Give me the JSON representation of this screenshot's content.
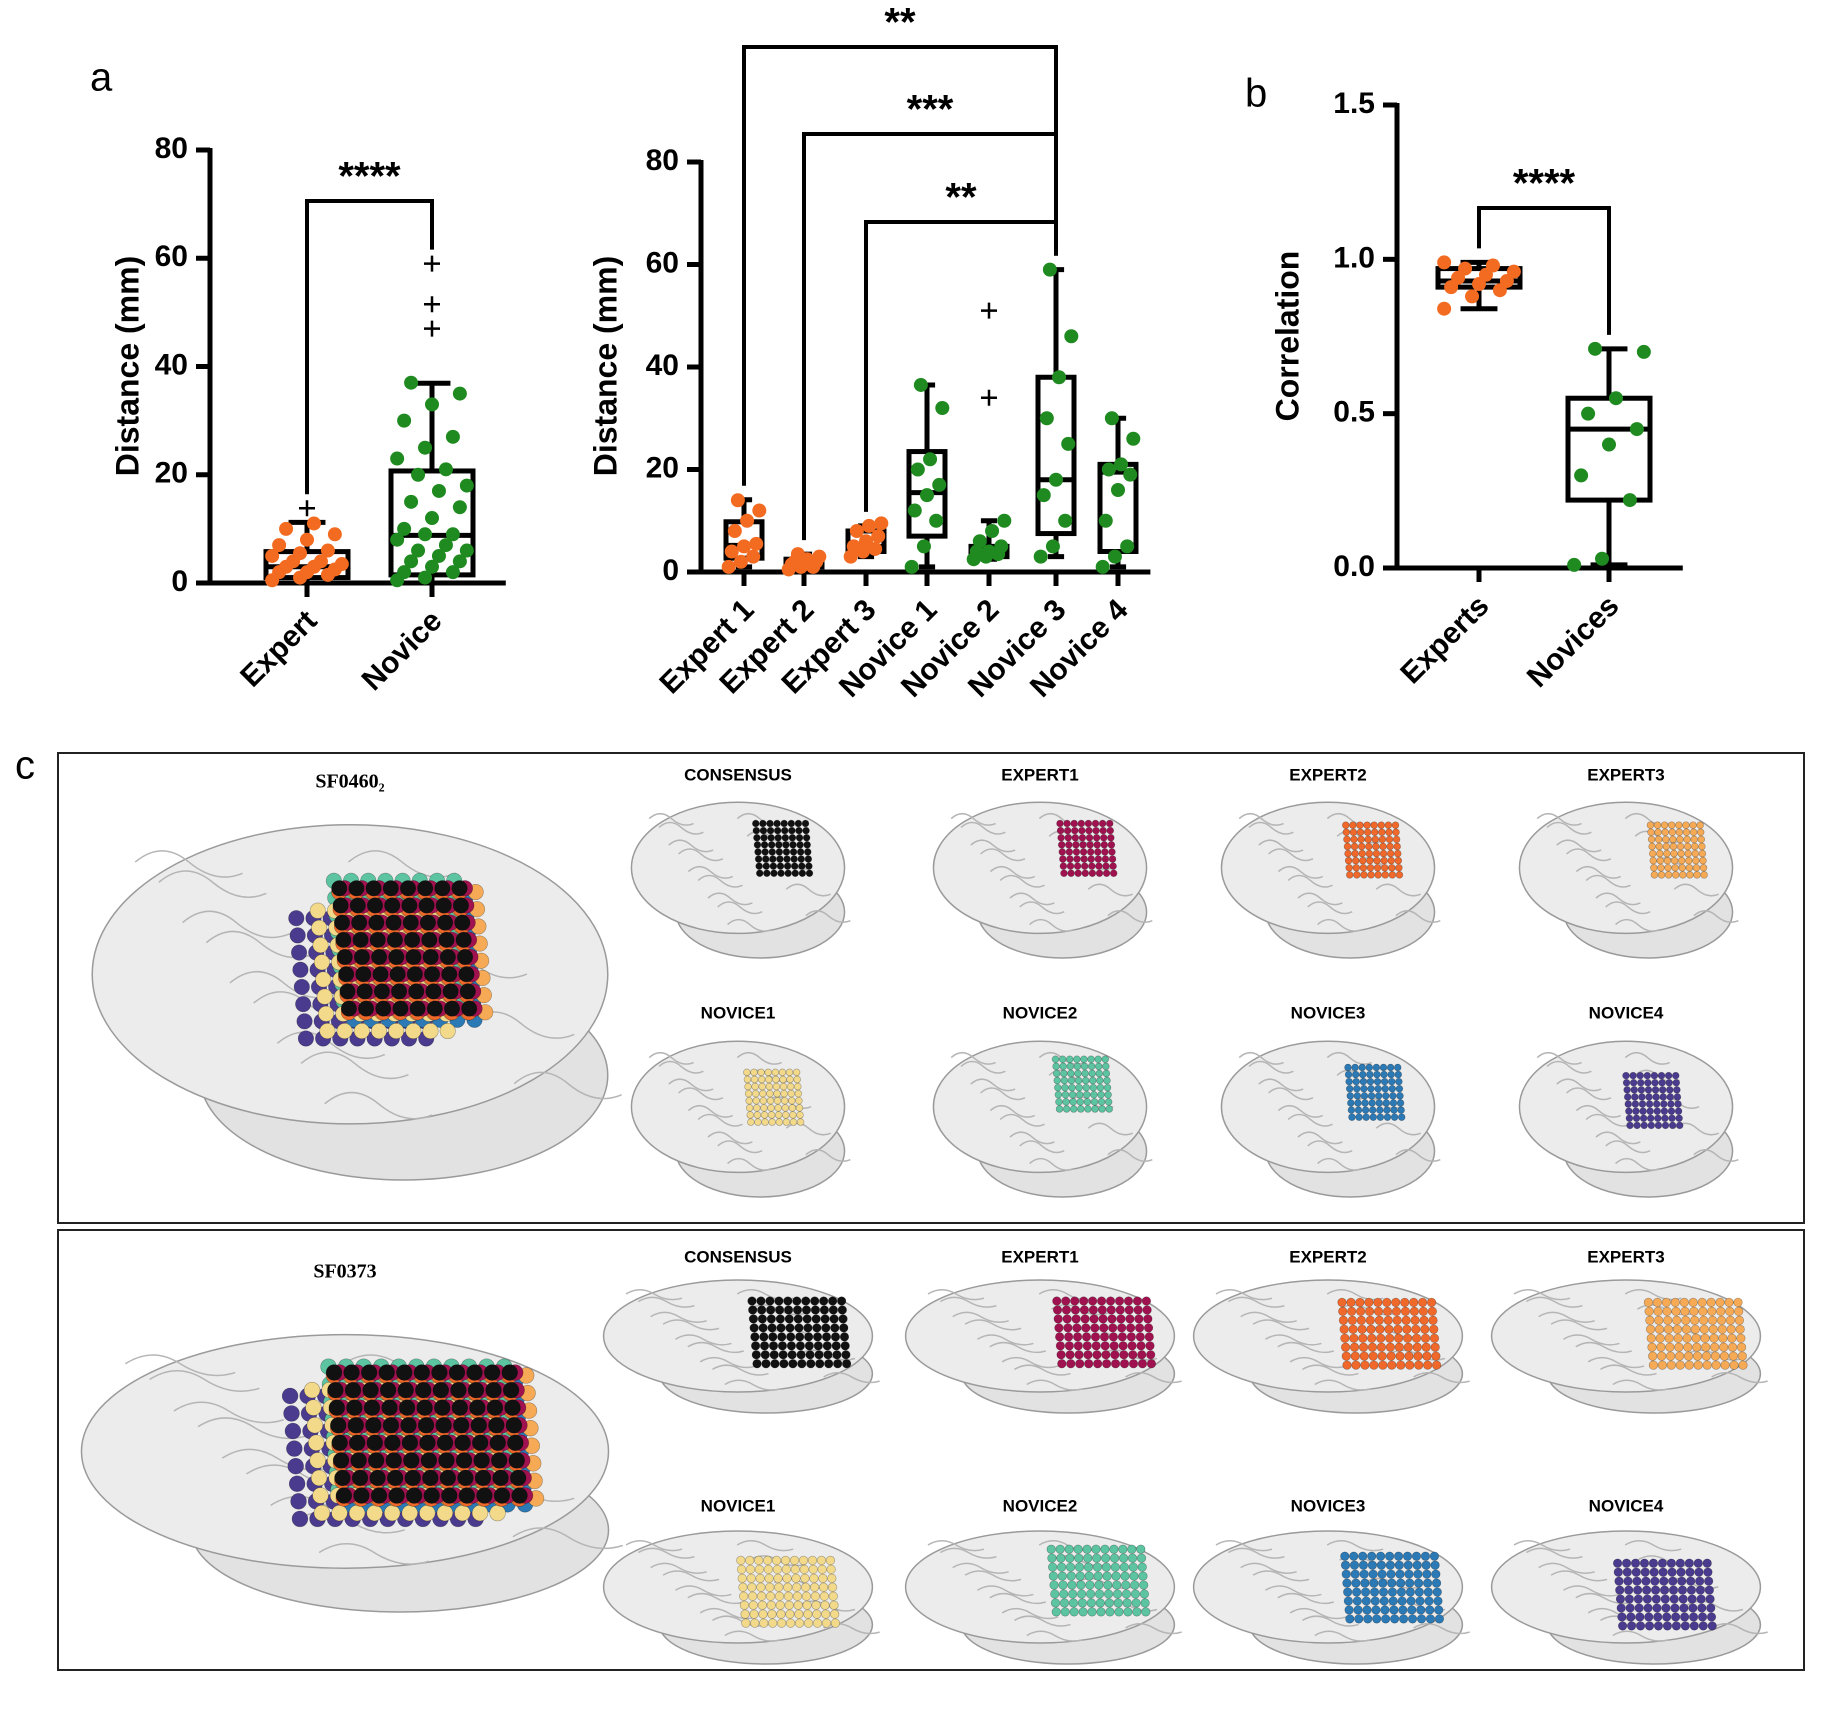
{
  "panel_labels": [
    "a",
    "b",
    "c"
  ],
  "chart_data": [
    {
      "type": "box",
      "ylabel": "Distance  (mm)",
      "categories": [
        "Expert",
        "Novice"
      ],
      "colors": [
        "#f26b21",
        "#1f8a1f"
      ],
      "ylim": [
        0,
        80
      ],
      "yticks": [
        0,
        20,
        40,
        60,
        80
      ],
      "boxes": [
        {
          "min": 0,
          "q1": 1,
          "median": 3,
          "q3": 5.8,
          "max": 11.2,
          "outliers": [
            13.8
          ],
          "points": [
            0.5,
            1,
            1.5,
            2,
            2,
            2.5,
            3,
            3,
            3.5,
            4,
            4,
            5,
            5.5,
            6,
            7,
            8,
            9,
            10,
            11
          ]
        },
        {
          "min": 0,
          "q1": 1.5,
          "median": 8.8,
          "q3": 20.7,
          "max": 36.9,
          "outliers": [
            47,
            51.5,
            59
          ],
          "points": [
            0.5,
            1,
            2,
            2,
            3,
            4,
            4,
            5,
            6,
            6,
            7,
            8,
            9,
            9,
            10,
            12,
            14,
            15,
            17,
            18,
            20,
            21,
            23,
            25,
            27,
            30,
            33,
            35,
            37
          ]
        }
      ],
      "comparisons": [
        {
          "label": "****",
          "from": 0,
          "to": 1
        }
      ]
    },
    {
      "type": "box",
      "ylabel": "Distance  (mm)",
      "categories": [
        "Expert 1",
        "Expert 2",
        "Expert 3",
        "Novice 1",
        "Novice 2",
        "Novice 3",
        "Novice 4"
      ],
      "colors": [
        "#f26b21",
        "#f26b21",
        "#f26b21",
        "#1f8a1f",
        "#1f8a1f",
        "#1f8a1f",
        "#1f8a1f"
      ],
      "ylim": [
        0,
        80
      ],
      "yticks": [
        0,
        20,
        40,
        60,
        80
      ],
      "boxes": [
        {
          "min": 1,
          "q1": 2.7,
          "median": 5.2,
          "q3": 9.8,
          "max": 14.1,
          "outliers": [],
          "points": [
            1,
            2,
            3,
            4,
            5,
            5.5,
            8,
            10,
            12,
            14
          ]
        },
        {
          "min": 0.5,
          "q1": 1,
          "median": 1.5,
          "q3": 2.5,
          "max": 3.5,
          "outliers": [],
          "points": [
            0.5,
            1,
            1,
            1.5,
            1.5,
            2,
            2,
            2.5,
            3,
            3.5
          ]
        },
        {
          "min": 3,
          "q1": 4,
          "median": 5,
          "q3": 8,
          "max": 9,
          "outliers": [],
          "points": [
            3,
            4,
            4.5,
            5,
            6,
            7,
            8,
            9,
            9.5
          ]
        },
        {
          "min": 1,
          "q1": 7,
          "median": 15.5,
          "q3": 23.5,
          "max": 36.5,
          "outliers": [],
          "points": [
            1,
            5,
            10,
            12,
            15,
            17,
            20,
            22,
            32,
            36.5
          ]
        },
        {
          "min": 2.5,
          "q1": 3,
          "median": 4,
          "q3": 5,
          "max": 10,
          "outliers": [
            34,
            51
          ],
          "points": [
            2.5,
            3,
            3.5,
            4,
            4,
            5,
            6,
            8,
            10
          ]
        },
        {
          "min": 3,
          "q1": 7.5,
          "median": 18,
          "q3": 38,
          "max": 59,
          "outliers": [],
          "points": [
            3,
            5,
            10,
            15,
            18,
            25,
            30,
            38,
            46,
            59
          ]
        },
        {
          "min": 1,
          "q1": 4,
          "median": 19.5,
          "q3": 21,
          "max": 30,
          "outliers": [],
          "points": [
            1,
            3,
            5,
            10,
            16,
            19,
            20,
            21,
            26,
            30
          ]
        }
      ],
      "comparisons": [
        {
          "label": "**",
          "from": 0,
          "to": 5
        },
        {
          "label": "***",
          "from": 1,
          "to": 5
        },
        {
          "label": "**",
          "from": 2,
          "to": 5
        }
      ]
    },
    {
      "type": "box",
      "ylabel": "Correlation",
      "categories": [
        "Experts",
        "Novices"
      ],
      "colors": [
        "#f26b21",
        "#1f8a1f"
      ],
      "ylim": [
        0,
        1.5
      ],
      "yticks": [
        {
          "value": 0,
          "label": "0.0"
        },
        {
          "value": 0.5,
          "label": "0.5"
        },
        {
          "value": 1,
          "label": "1.0"
        },
        {
          "value": 1.5,
          "label": "1.5"
        }
      ],
      "boxes": [
        {
          "min": 0.84,
          "q1": 0.91,
          "median": 0.93,
          "q3": 0.97,
          "max": 0.99,
          "outliers": [],
          "points": [
            0.84,
            0.88,
            0.9,
            0.91,
            0.92,
            0.93,
            0.94,
            0.95,
            0.96,
            0.97,
            0.98,
            0.99
          ]
        },
        {
          "min": 0.01,
          "q1": 0.22,
          "median": 0.45,
          "q3": 0.55,
          "max": 0.71,
          "outliers": [],
          "points": [
            0.01,
            0.03,
            0.22,
            0.3,
            0.4,
            0.45,
            0.5,
            0.55,
            0.7,
            0.71
          ]
        }
      ],
      "comparisons": [
        {
          "label": "****",
          "from": 0,
          "to": 1
        }
      ]
    }
  ],
  "panel_c": {
    "subjects": [
      {
        "id": "SF0460₂",
        "views": [
          {
            "label": "CONSENSUS",
            "color": "#111111"
          },
          {
            "label": "EXPERT1",
            "color": "#a0124f"
          },
          {
            "label": "EXPERT2",
            "color": "#f0682a"
          },
          {
            "label": "EXPERT3",
            "color": "#f6aa55"
          },
          {
            "label": "NOVICE1",
            "color": "#f3d98a"
          },
          {
            "label": "NOVICE2",
            "color": "#5cc4a0"
          },
          {
            "label": "NOVICE3",
            "color": "#2b79b5"
          },
          {
            "label": "NOVICE4",
            "color": "#4b3b8f"
          }
        ]
      },
      {
        "id": "SF0373",
        "views": [
          {
            "label": "CONSENSUS",
            "color": "#111111"
          },
          {
            "label": "EXPERT1",
            "color": "#a0124f"
          },
          {
            "label": "EXPERT2",
            "color": "#f0682a"
          },
          {
            "label": "EXPERT3",
            "color": "#f6aa55"
          },
          {
            "label": "NOVICE1",
            "color": "#f3d98a"
          },
          {
            "label": "NOVICE2",
            "color": "#5cc4a0"
          },
          {
            "label": "NOVICE3",
            "color": "#2b79b5"
          },
          {
            "label": "NOVICE4",
            "color": "#4b3b8f"
          }
        ]
      }
    ]
  }
}
